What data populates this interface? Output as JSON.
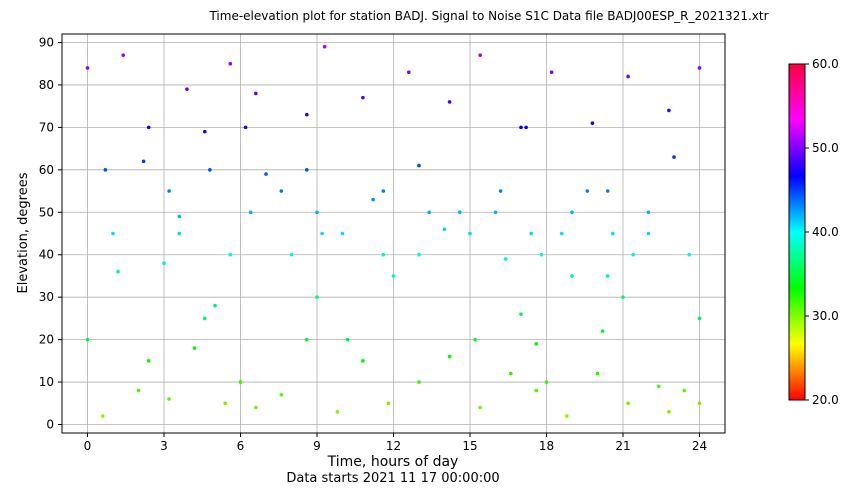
{
  "chart_data": {
    "type": "scatter",
    "title": "Time-elevation plot for station BADJ.    Signal to Noise S1C    Data file BADJ00ESP_R_2021321.xtr",
    "xlabel": "Time, hours of day",
    "xlabel2": "Data starts 2021 11 17 00:00:00",
    "ylabel": "Elevation, degrees",
    "xlim": [
      -1,
      25
    ],
    "ylim": [
      -2,
      92
    ],
    "xticks": [
      0,
      3,
      6,
      9,
      12,
      15,
      18,
      21,
      24
    ],
    "yticks": [
      0,
      10,
      20,
      30,
      40,
      50,
      60,
      70,
      80,
      90
    ],
    "grid": true,
    "colorbar": {
      "range": [
        20,
        60
      ],
      "ticks": [
        "20.0",
        "30.0",
        "40.0",
        "50.0",
        "60.0"
      ],
      "colormap": "hsv"
    },
    "series": [
      {
        "x": [
          0.0,
          0.7,
          1.4,
          2.2,
          3.0
        ],
        "y": [
          84,
          60,
          87,
          62,
          38
        ]
      },
      {
        "x": [
          3.2,
          3.9,
          4.8,
          5.6,
          6.4
        ],
        "y": [
          55,
          79,
          60,
          85,
          50
        ]
      },
      {
        "x": [
          6.2,
          6.6,
          7.6,
          8.6,
          9.2
        ],
        "y": [
          70,
          78,
          55,
          73,
          45
        ]
      },
      {
        "x": [
          8.6,
          9.3,
          10.0,
          10.8,
          11.6
        ],
        "y": [
          60,
          89,
          45,
          77,
          40
        ]
      },
      {
        "x": [
          11.6,
          12.6,
          13.4,
          14.2,
          15.0
        ],
        "y": [
          55,
          83,
          50,
          76,
          45
        ]
      },
      {
        "x": [
          14.6,
          15.4,
          16.2,
          17.0,
          17.8
        ],
        "y": [
          50,
          87,
          55,
          70,
          40
        ]
      },
      {
        "x": [
          17.4,
          18.2,
          19.0,
          19.8,
          20.6
        ],
        "y": [
          45,
          83,
          50,
          71,
          45
        ]
      },
      {
        "x": [
          20.4,
          21.2,
          22.0,
          22.8,
          24.0
        ],
        "y": [
          55,
          82,
          50,
          74,
          84
        ]
      },
      {
        "x": [
          1.0,
          2.4,
          3.6,
          4.6,
          5.6
        ],
        "y": [
          45,
          70,
          45,
          69,
          40
        ]
      },
      {
        "x": [
          16.0,
          17.2,
          18.6,
          19.6,
          20.4
        ],
        "y": [
          50,
          70,
          45,
          55,
          35
        ]
      },
      {
        "x": [
          0.0,
          1.2,
          2.4,
          3.6,
          4.6
        ],
        "y": [
          20,
          36,
          15,
          49,
          25
        ]
      },
      {
        "x": [
          5.0,
          6.0,
          7.0,
          8.0,
          9.0
        ],
        "y": [
          28,
          10,
          59,
          40,
          50
        ]
      },
      {
        "x": [
          9.0,
          10.2,
          11.2,
          12.0,
          13.0
        ],
        "y": [
          30,
          20,
          53,
          35,
          61
        ]
      },
      {
        "x": [
          13.0,
          14.0,
          15.2,
          16.4,
          17.6
        ],
        "y": [
          40,
          46,
          20,
          39,
          19
        ]
      },
      {
        "x": [
          17.0,
          18.0,
          19.0,
          20.2,
          21.4
        ],
        "y": [
          26,
          10,
          35,
          22,
          40
        ]
      },
      {
        "x": [
          21.0,
          22.0,
          23.0,
          23.6,
          24.0
        ],
        "y": [
          30,
          45,
          63,
          40,
          25
        ]
      },
      {
        "x": [
          0.6,
          2.0,
          3.2,
          4.2,
          5.4
        ],
        "y": [
          2,
          8,
          6,
          18,
          5
        ]
      },
      {
        "x": [
          6.6,
          7.6,
          8.6,
          9.8,
          10.8
        ],
        "y": [
          4,
          7,
          20,
          3,
          15
        ]
      },
      {
        "x": [
          11.8,
          13.0,
          14.2,
          15.4,
          16.6
        ],
        "y": [
          5,
          10,
          16,
          4,
          12
        ]
      },
      {
        "x": [
          17.6,
          18.8,
          20.0,
          21.2,
          22.4
        ],
        "y": [
          8,
          2,
          12,
          5,
          9
        ]
      },
      {
        "x": [
          22.8,
          23.4,
          24.0
        ],
        "y": [
          3,
          8,
          5
        ]
      }
    ]
  }
}
